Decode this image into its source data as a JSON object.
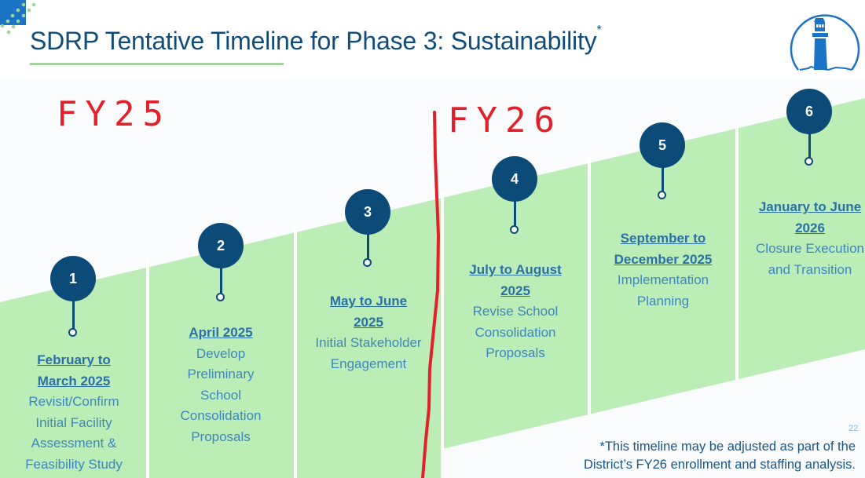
{
  "slide": {
    "title": "SDRP Tentative Timeline for Phase 3: Sustainability",
    "title_marker": "*",
    "logo": "lighthouse-logo",
    "page_number": "22",
    "colors": {
      "title": "#0f4c7a",
      "band": "#bdedb6",
      "badge": "#0c4a77",
      "annotation": "#e3202a"
    }
  },
  "annotations": {
    "fy25": "FY25",
    "fy26": "FY26"
  },
  "steps": [
    {
      "number": "1",
      "date_line1": "February to",
      "date_line2": "March 2025",
      "desc": [
        "Revisit/Confirm",
        "Initial Facility",
        "Assessment &",
        "Feasibility Study"
      ]
    },
    {
      "number": "2",
      "date_line1": "April 2025",
      "date_line2": "",
      "desc": [
        "Develop",
        "Preliminary",
        "School",
        "Consolidation",
        "Proposals"
      ]
    },
    {
      "number": "3",
      "date_line1": "May to June",
      "date_line2": "2025",
      "desc": [
        "Initial Stakeholder",
        "Engagement"
      ]
    },
    {
      "number": "4",
      "date_line1": "July to August",
      "date_line2": "2025",
      "desc": [
        "Revise School",
        "Consolidation",
        "Proposals"
      ]
    },
    {
      "number": "5",
      "date_line1": "September to",
      "date_line2": "December 2025",
      "desc": [
        "Implementation",
        "Planning"
      ]
    },
    {
      "number": "6",
      "date_line1": "January to June",
      "date_line2": "2026",
      "desc": [
        "Closure Execution",
        "and Transition"
      ]
    }
  ],
  "footnote": {
    "line1": "*This timeline may be adjusted as part of the",
    "line2": "District’s FY26  enrollment and staffing analysis."
  }
}
